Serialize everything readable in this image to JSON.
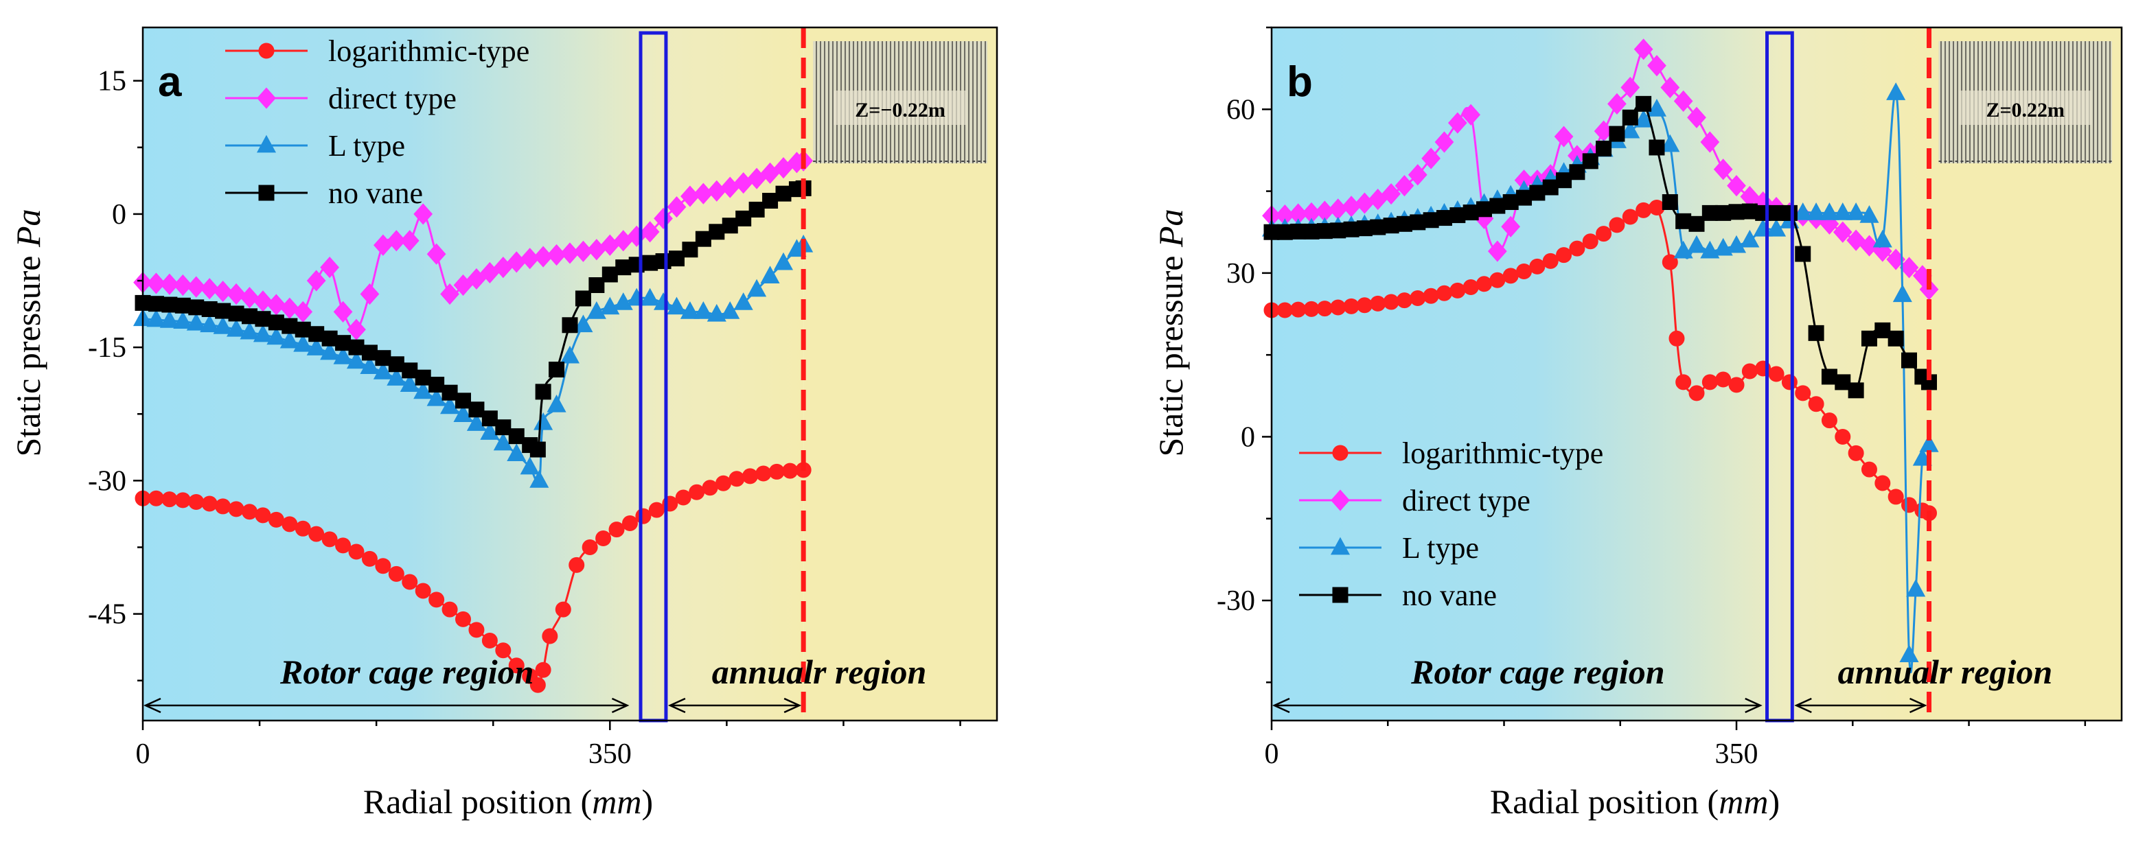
{
  "colors": {
    "logarithmic": "#ff2020",
    "direct": "#ff33ff",
    "ltype": "#1f8fdc",
    "novane": "#000000",
    "blue_box": "#1a1adc",
    "red_line": "#ff1a1a",
    "rotor_bg": "#9fe0f4",
    "annular_bg": "#f4ecb0"
  },
  "chart_data": [
    {
      "type": "line",
      "panel_label": "a",
      "xlabel_prefix": "Radial position (",
      "xlabel_unit": "mm",
      "xlabel_suffix": ")",
      "ylabel_prefix": "Static pressure ",
      "ylabel_unit": "Pa",
      "xlim": [
        0,
        640
      ],
      "ylim": [
        -57,
        21
      ],
      "xticks": [
        0,
        350
      ],
      "yticks": [
        15,
        0,
        -15,
        -30,
        -45
      ],
      "inset_label": "Z=−0.22m",
      "rotor_label": "Rotor cage region",
      "annular_label": "annualr region",
      "rotor_end": 365,
      "annular_end": 495,
      "boundary_box": [
        373,
        392
      ],
      "legend_position": "top-left",
      "series": [
        {
          "name": "logarithmic-type",
          "key": "logarithmic",
          "marker": "circle",
          "x": [
            0,
            10,
            20,
            30,
            40,
            50,
            60,
            70,
            80,
            90,
            100,
            110,
            120,
            130,
            140,
            150,
            160,
            170,
            180,
            190,
            200,
            210,
            220,
            230,
            240,
            250,
            260,
            270,
            280,
            290,
            296,
            300,
            305,
            315,
            325,
            335,
            345,
            355,
            365,
            375,
            385,
            395,
            405,
            415,
            425,
            435,
            445,
            455,
            465,
            475,
            485,
            495
          ],
          "y": [
            -32,
            -32,
            -32.1,
            -32.2,
            -32.4,
            -32.6,
            -32.9,
            -33.2,
            -33.5,
            -33.9,
            -34.4,
            -34.9,
            -35.4,
            -36,
            -36.6,
            -37.3,
            -38,
            -38.8,
            -39.6,
            -40.5,
            -41.4,
            -42.4,
            -43.4,
            -44.5,
            -45.6,
            -46.8,
            -48,
            -49.1,
            -50.8,
            -52,
            -53,
            -51.3,
            -47.5,
            -44.5,
            -39.5,
            -37.5,
            -36.5,
            -35.5,
            -34.8,
            -34,
            -33.3,
            -32.6,
            -31.9,
            -31.3,
            -30.8,
            -30.3,
            -29.8,
            -29.5,
            -29.2,
            -29,
            -28.9,
            -28.8
          ]
        },
        {
          "name": "direct type",
          "key": "direct",
          "marker": "diamond",
          "x": [
            0,
            10,
            20,
            30,
            40,
            50,
            60,
            70,
            80,
            90,
            100,
            110,
            120,
            130,
            140,
            150,
            160,
            170,
            180,
            190,
            200,
            210,
            220,
            230,
            240,
            250,
            260,
            270,
            280,
            290,
            300,
            310,
            320,
            330,
            340,
            350,
            360,
            370,
            380,
            390,
            400,
            410,
            420,
            430,
            440,
            450,
            460,
            470,
            480,
            490,
            495
          ],
          "y": [
            -7.7,
            -7.8,
            -7.9,
            -8,
            -8.2,
            -8.4,
            -8.7,
            -9,
            -9.4,
            -9.8,
            -10.2,
            -10.6,
            -11,
            -7.5,
            -6,
            -11,
            -13,
            -9,
            -3.5,
            -3,
            -3,
            0,
            -4.5,
            -9,
            -8,
            -7.3,
            -6.6,
            -6,
            -5.4,
            -5,
            -4.8,
            -4.6,
            -4.4,
            -4.2,
            -4,
            -3.5,
            -3,
            -2.5,
            -2,
            -0.5,
            0.8,
            2,
            2.3,
            2.6,
            3,
            3.5,
            4,
            4.6,
            5.2,
            5.8,
            6
          ]
        },
        {
          "name": "L type",
          "key": "ltype",
          "marker": "triangle",
          "x": [
            0,
            10,
            20,
            30,
            40,
            50,
            60,
            70,
            80,
            90,
            100,
            110,
            120,
            130,
            140,
            150,
            160,
            170,
            180,
            190,
            200,
            210,
            220,
            230,
            240,
            250,
            260,
            270,
            280,
            290,
            297,
            300,
            310,
            320,
            330,
            340,
            350,
            360,
            370,
            380,
            390,
            400,
            410,
            420,
            430,
            440,
            450,
            460,
            470,
            480,
            490,
            495
          ],
          "y": [
            -11.8,
            -11.9,
            -12,
            -12.1,
            -12.3,
            -12.5,
            -12.7,
            -13,
            -13.3,
            -13.6,
            -13.9,
            -14.3,
            -14.7,
            -15.1,
            -15.6,
            -16.1,
            -16.6,
            -17.2,
            -17.8,
            -18.5,
            -19.2,
            -20,
            -20.8,
            -21.7,
            -22.6,
            -23.6,
            -24.6,
            -25.8,
            -27,
            -28.5,
            -30,
            -23.5,
            -21.5,
            -16,
            -12.5,
            -11,
            -10.5,
            -10,
            -9.5,
            -9.5,
            -10,
            -10.5,
            -11,
            -11,
            -11.3,
            -11,
            -10,
            -8.5,
            -7,
            -5.5,
            -4,
            -3.5
          ]
        },
        {
          "name": "no vane",
          "key": "novane",
          "marker": "square",
          "x": [
            0,
            10,
            20,
            30,
            40,
            50,
            60,
            70,
            80,
            90,
            100,
            110,
            120,
            130,
            140,
            150,
            160,
            170,
            180,
            190,
            200,
            210,
            220,
            230,
            240,
            250,
            260,
            270,
            280,
            290,
            296,
            300,
            310,
            320,
            330,
            340,
            350,
            360,
            370,
            380,
            390,
            400,
            410,
            420,
            430,
            440,
            450,
            460,
            470,
            480,
            490,
            495
          ],
          "y": [
            -10,
            -10.1,
            -10.2,
            -10.3,
            -10.5,
            -10.7,
            -10.9,
            -11.2,
            -11.5,
            -11.8,
            -12.2,
            -12.6,
            -13,
            -13.5,
            -14,
            -14.5,
            -15,
            -15.6,
            -16.2,
            -16.9,
            -17.6,
            -18.4,
            -19.2,
            -20.1,
            -21,
            -22,
            -23,
            -24,
            -25,
            -26,
            -26.5,
            -20,
            -17.5,
            -12.5,
            -9.5,
            -8,
            -6.8,
            -6,
            -5.7,
            -5.5,
            -5.3,
            -5,
            -4,
            -2.8,
            -2,
            -1.3,
            -0.5,
            0.5,
            1.5,
            2.3,
            2.8,
            2.9
          ]
        }
      ]
    },
    {
      "type": "line",
      "panel_label": "b",
      "xlabel_prefix": "Radial position (",
      "xlabel_unit": "mm",
      "xlabel_suffix": ")",
      "ylabel_prefix": "Static pressure ",
      "ylabel_unit": "Pa",
      "xlim": [
        0,
        640
      ],
      "ylim": [
        -52,
        75
      ],
      "xticks": [
        0,
        350
      ],
      "yticks": [
        60,
        30,
        0,
        -30
      ],
      "inset_label": "Z=0.22m",
      "rotor_label": "Rotor cage region",
      "annular_label": "annualr region",
      "rotor_end": 370,
      "annular_end": 495,
      "boundary_box": [
        373,
        392
      ],
      "legend_position": "bottom-left",
      "series": [
        {
          "name": "logarithmic-type",
          "key": "logarithmic",
          "marker": "circle",
          "x": [
            0,
            10,
            20,
            30,
            40,
            50,
            60,
            70,
            80,
            90,
            100,
            110,
            120,
            130,
            140,
            150,
            160,
            170,
            180,
            190,
            200,
            210,
            220,
            230,
            240,
            250,
            260,
            270,
            280,
            290,
            300,
            305,
            310,
            320,
            330,
            340,
            350,
            360,
            370,
            380,
            390,
            400,
            410,
            420,
            430,
            440,
            450,
            460,
            470,
            480,
            490,
            495
          ],
          "y": [
            23.2,
            23.2,
            23.3,
            23.4,
            23.5,
            23.7,
            23.9,
            24.1,
            24.4,
            24.7,
            25,
            25.4,
            25.8,
            26.3,
            26.8,
            27.4,
            28,
            28.7,
            29.5,
            30.3,
            31.2,
            32.2,
            33.3,
            34.5,
            35.8,
            37.2,
            38.8,
            40.3,
            41.5,
            42,
            32,
            18,
            10,
            8,
            10,
            10.5,
            9.5,
            12,
            12.5,
            11.5,
            10,
            8,
            6,
            3,
            0,
            -3,
            -6,
            -8.5,
            -11,
            -12.5,
            -13.5,
            -14
          ]
        },
        {
          "name": "direct type",
          "key": "direct",
          "marker": "diamond",
          "x": [
            0,
            10,
            20,
            30,
            40,
            50,
            60,
            70,
            80,
            90,
            100,
            110,
            120,
            130,
            140,
            150,
            160,
            170,
            180,
            190,
            200,
            210,
            220,
            230,
            240,
            250,
            260,
            270,
            280,
            290,
            300,
            310,
            320,
            330,
            340,
            350,
            360,
            370,
            380,
            390,
            400,
            410,
            420,
            430,
            440,
            450,
            460,
            470,
            480,
            490,
            495
          ],
          "y": [
            40.5,
            40.6,
            40.8,
            41,
            41.3,
            41.7,
            42.2,
            42.8,
            43.5,
            44.5,
            46,
            48,
            51,
            54,
            57.5,
            59,
            40,
            34,
            38.5,
            47,
            47,
            48,
            55,
            51.5,
            52,
            56,
            61,
            64,
            71,
            68,
            64,
            61.5,
            58.5,
            54,
            49,
            46,
            44,
            43,
            42,
            41,
            40.5,
            40,
            39,
            37.5,
            36,
            35,
            34,
            32.5,
            31,
            29.5,
            27
          ]
        },
        {
          "name": "L type",
          "key": "ltype",
          "marker": "triangle",
          "x": [
            0,
            10,
            20,
            30,
            40,
            50,
            60,
            70,
            80,
            90,
            100,
            110,
            120,
            130,
            140,
            150,
            160,
            170,
            180,
            190,
            200,
            210,
            220,
            230,
            240,
            250,
            260,
            270,
            280,
            290,
            300,
            310,
            320,
            330,
            340,
            350,
            360,
            370,
            380,
            390,
            400,
            410,
            420,
            430,
            440,
            450,
            460,
            470,
            475,
            480,
            485,
            490,
            495
          ],
          "y": [
            38,
            38.1,
            38.1,
            38.2,
            38.3,
            38.4,
            38.6,
            38.8,
            39,
            39.3,
            39.6,
            40,
            40.4,
            40.9,
            41.4,
            42,
            42.7,
            43.4,
            44.2,
            45.1,
            46.1,
            47.2,
            48.4,
            49.7,
            51.1,
            52.6,
            54.2,
            56,
            58,
            60,
            53.5,
            34,
            35,
            34,
            34.5,
            35,
            36,
            38,
            38,
            39.5,
            41,
            41,
            41,
            41,
            41,
            40.5,
            36,
            63,
            26,
            -40,
            -28,
            -4,
            -1.5
          ]
        },
        {
          "name": "no vane",
          "key": "novane",
          "marker": "square",
          "x": [
            0,
            10,
            20,
            30,
            40,
            50,
            60,
            70,
            80,
            90,
            100,
            110,
            120,
            130,
            140,
            150,
            160,
            170,
            180,
            190,
            200,
            210,
            220,
            230,
            240,
            250,
            260,
            270,
            280,
            290,
            300,
            310,
            320,
            330,
            340,
            350,
            360,
            370,
            380,
            390,
            400,
            410,
            420,
            430,
            440,
            450,
            460,
            470,
            480,
            490,
            495
          ],
          "y": [
            37.5,
            37.5,
            37.6,
            37.6,
            37.7,
            37.8,
            38,
            38.2,
            38.4,
            38.7,
            39,
            39.3,
            39.7,
            40.1,
            40.6,
            41.1,
            41.7,
            42.3,
            43,
            43.8,
            44.7,
            45.7,
            47,
            48.5,
            50.5,
            52.8,
            55.5,
            58.5,
            61,
            53,
            43,
            39.5,
            39,
            41,
            41,
            41.2,
            41.3,
            41,
            41,
            41,
            33.5,
            19,
            11,
            10,
            8.5,
            18,
            19.5,
            18,
            14,
            11,
            10
          ]
        }
      ]
    }
  ],
  "legend_labels": [
    "logarithmic-type",
    "direct type",
    "L type",
    "no vane"
  ]
}
